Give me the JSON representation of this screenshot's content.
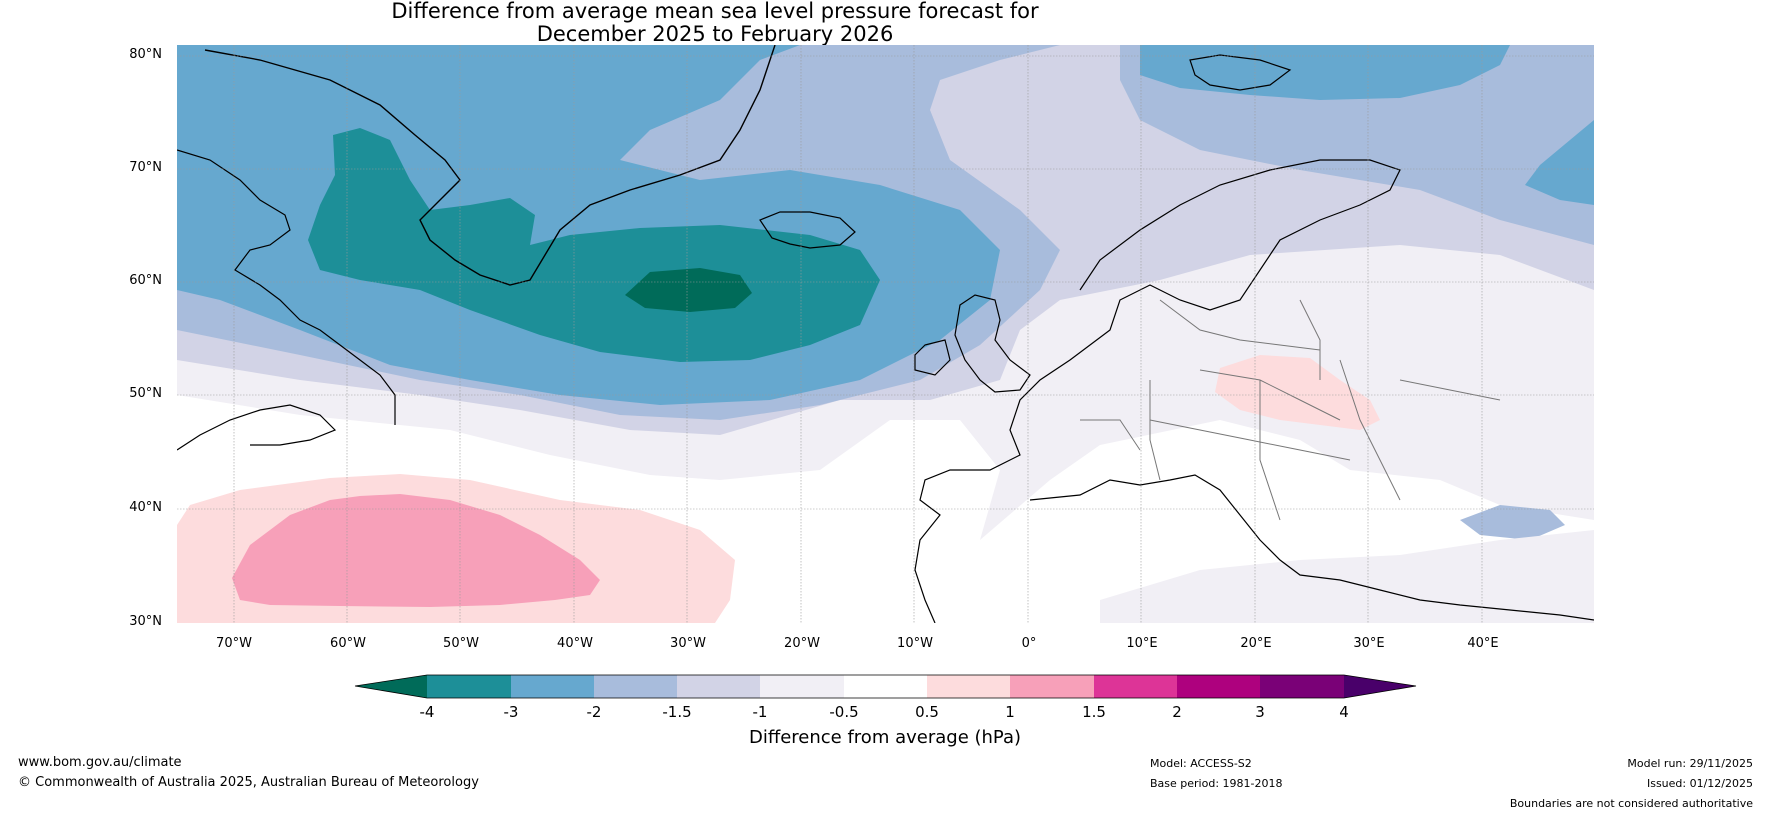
{
  "title": {
    "line1": "Difference from average mean sea level pressure forecast for",
    "line2": "December 2025 to February 2026"
  },
  "axes": {
    "lat_labels": [
      "80°N",
      "70°N",
      "60°N",
      "50°N",
      "40°N",
      "30°N"
    ],
    "lon_labels": [
      "70°W",
      "60°W",
      "50°W",
      "40°W",
      "30°W",
      "20°W",
      "10°W",
      "0°",
      "10°E",
      "20°E",
      "30°E",
      "40°E"
    ]
  },
  "colorbar": {
    "title": "Difference from average (hPa)",
    "ticks": [
      "-4",
      "-3",
      "-2",
      "-1.5",
      "-1",
      "-0.5",
      "0.5",
      "1",
      "1.5",
      "2",
      "3",
      "4"
    ],
    "colors": {
      "lt_m4": "#006b59",
      "m4_m3": "#1d8f98",
      "m3_m2": "#66a8cf",
      "m2_m15": "#a8bcdc",
      "m15_m1": "#d2d3e6",
      "m1_m05": "#f1eff5",
      "m05_05": "#ffffff",
      "p05_1": "#fddcdd",
      "p1_15": "#f7a0b9",
      "p15_2": "#dd3497",
      "p2_3": "#ae017e",
      "p3_4": "#7a0177",
      "gt_4": "#49006a"
    }
  },
  "footer": {
    "url": "www.bom.gov.au/climate",
    "copyright": "© Commonwealth of Australia 2025, Australian Bureau of Meteorology",
    "model": "Model: ACCESS-S2",
    "base_period": "Base period: 1981-2018",
    "model_run": "Model run: 29/11/2025",
    "issued": "Issued: 01/12/2025",
    "disclaimer": "Boundaries are not considered authoritative"
  }
}
